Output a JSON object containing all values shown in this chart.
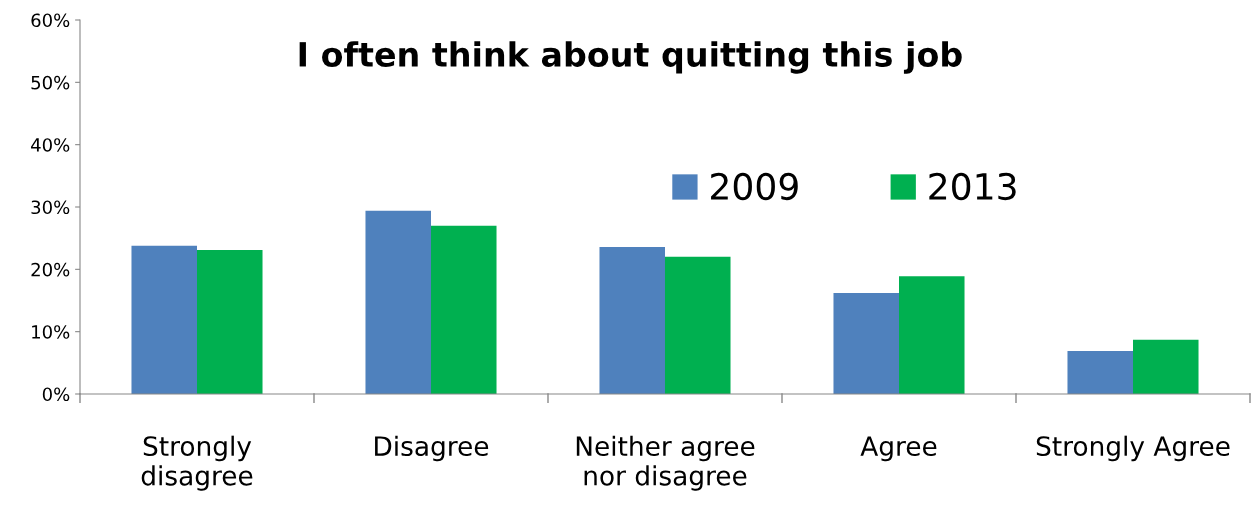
{
  "chart_data": {
    "type": "bar",
    "title": "I often think about quitting this job",
    "categories": [
      "Strongly\ndisagree",
      "Disagree",
      "Neither agree\nnor disagree",
      "Agree",
      "Strongly Agree"
    ],
    "series": [
      {
        "name": "2009",
        "color": "#4f81bd",
        "values": [
          23.8,
          29.4,
          23.6,
          16.2,
          6.9
        ]
      },
      {
        "name": "2013",
        "color": "#00b050",
        "values": [
          23.1,
          27.0,
          22.0,
          18.9,
          8.7
        ]
      }
    ],
    "ylim": [
      0,
      60
    ],
    "yticks": [
      {
        "value": 0,
        "label": "0%"
      },
      {
        "value": 10,
        "label": "10%"
      },
      {
        "value": 20,
        "label": "20%"
      },
      {
        "value": 30,
        "label": "30%"
      },
      {
        "value": 40,
        "label": "40%"
      },
      {
        "value": 50,
        "label": "50%"
      },
      {
        "value": 60,
        "label": "60%"
      }
    ],
    "grid": false,
    "legend": "top right"
  }
}
